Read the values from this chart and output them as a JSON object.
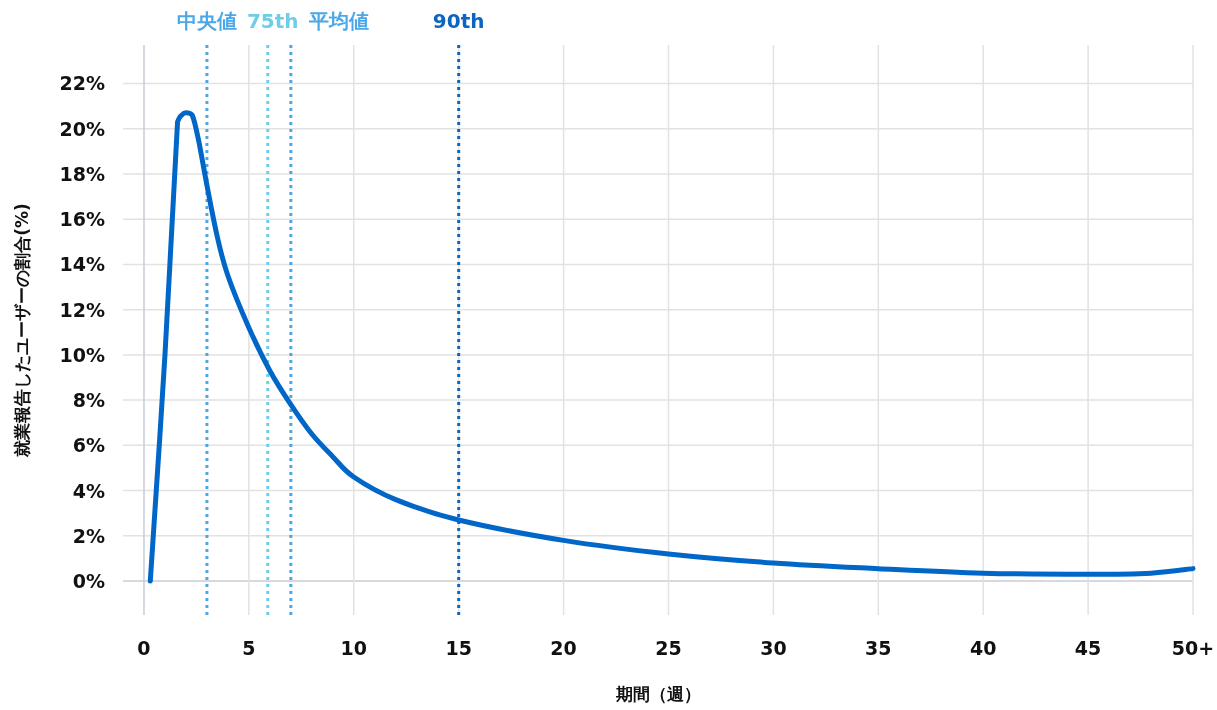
{
  "chart_data": {
    "type": "line",
    "xlabel": "期間（週）",
    "ylabel": "就業報告したユーザーの割合(%)",
    "series": [
      {
        "color": "#0066c8",
        "x": [
          0.3,
          1.0,
          1.6,
          1.8,
          2.0,
          2.3,
          2.6,
          3.0,
          3.5,
          4,
          5,
          6,
          7,
          8,
          9,
          10,
          12,
          15,
          20,
          25,
          30,
          35,
          40,
          45,
          48,
          50
        ],
        "values": [
          0,
          10,
          20.3,
          20.6,
          20.7,
          20.6,
          19.5,
          17.5,
          15.2,
          13.5,
          11.2,
          9.3,
          7.8,
          6.5,
          5.5,
          4.6,
          3.6,
          2.7,
          1.8,
          1.2,
          0.8,
          0.55,
          0.35,
          0.3,
          0.35,
          0.55
        ]
      }
    ],
    "xlim": [
      -1,
      50
    ],
    "ylim": [
      -1.5,
      23.7
    ],
    "xticks": [
      0,
      5,
      10,
      15,
      20,
      25,
      30,
      35,
      40,
      45,
      {
        "value": 50,
        "label": "50+"
      }
    ],
    "yticks": [
      {
        "value": 0,
        "label": "0%"
      },
      {
        "value": 2,
        "label": "2%"
      },
      {
        "value": 4,
        "label": "4%"
      },
      {
        "value": 6,
        "label": "6%"
      },
      {
        "value": 8,
        "label": "8%"
      },
      {
        "value": 10,
        "label": "10%"
      },
      {
        "value": 12,
        "label": "12%"
      },
      {
        "value": 14,
        "label": "14%"
      },
      {
        "value": 16,
        "label": "16%"
      },
      {
        "value": 18,
        "label": "18%"
      },
      {
        "value": 20,
        "label": "20%"
      },
      {
        "value": 22,
        "label": "22%"
      }
    ],
    "ref_lines": [
      {
        "axis": "x",
        "value": 3,
        "label": "中央値",
        "color": "#4aa8e8",
        "line_style": "dotted"
      },
      {
        "axis": "x",
        "value": 5.9,
        "label": "75th",
        "color": "#6fcde8",
        "line_style": "dotted"
      },
      {
        "axis": "x",
        "value": 7,
        "label": "平均値",
        "color": "#4aa8e8",
        "line_style": "dotted"
      },
      {
        "axis": "x",
        "value": 15,
        "label": "90th",
        "color": "#0a66c2",
        "line_style": "dotted"
      }
    ],
    "grid": true,
    "marker": "none",
    "line_style": "solid"
  }
}
